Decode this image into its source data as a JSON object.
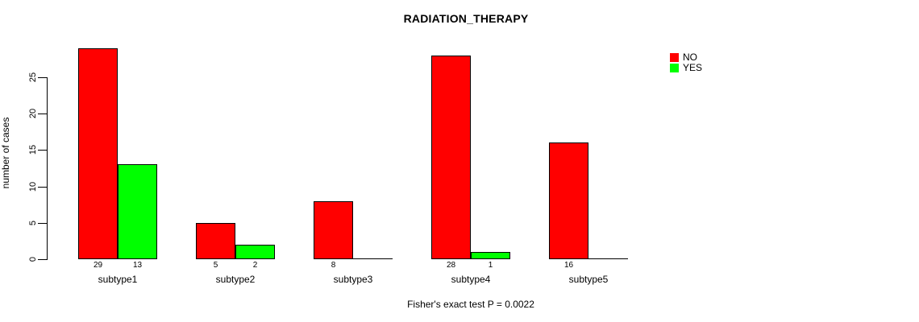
{
  "chart": {
    "title": "RADIATION_THERAPY",
    "ylabel": "number of cases",
    "footnote": "Fisher's exact test P = 0.0022",
    "colors": {
      "no": "#ff0000",
      "yes": "#00ff00",
      "axis": "#000000",
      "background": "#ffffff"
    }
  },
  "chart_data": {
    "type": "bar",
    "title": "RADIATION_THERAPY",
    "xlabel": "",
    "ylabel": "number of cases",
    "categories": [
      "subtype1",
      "subtype2",
      "subtype3",
      "subtype4",
      "subtype5"
    ],
    "series": [
      {
        "name": "NO",
        "color": "#ff0000",
        "values": [
          29,
          5,
          8,
          28,
          16
        ]
      },
      {
        "name": "YES",
        "color": "#00ff00",
        "values": [
          13,
          2,
          0,
          1,
          0
        ]
      }
    ],
    "bar_value_labels": {
      "NO": [
        "29",
        "5",
        "8",
        "28",
        "16"
      ],
      "YES": [
        "13",
        "2",
        "",
        "1",
        ""
      ]
    },
    "yticks": [
      0,
      5,
      10,
      15,
      20,
      25
    ],
    "ylim": [
      0,
      29
    ],
    "grid": false,
    "legend_position": "top-right",
    "legend_border": false,
    "annotation": "Fisher's exact test P = 0.0022"
  }
}
